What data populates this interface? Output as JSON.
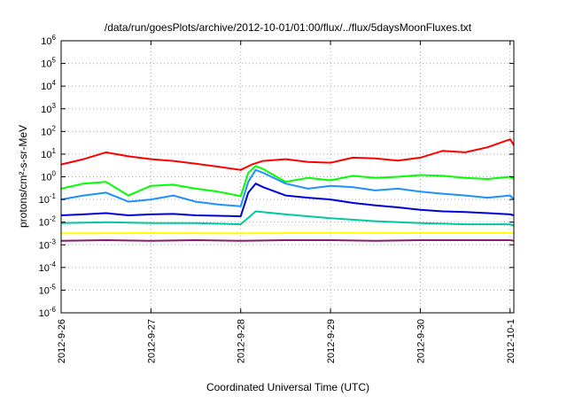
{
  "chart_data": {
    "type": "line",
    "title": "/data/run/goesPlots/archive/2012-10-01/01:00/flux/../flux/5daysMoonFluxes.txt",
    "xlabel": "Coordinated Universal Time (UTC)",
    "ylabel": "protons/cm²-s-sr-MeV",
    "x_range": [
      "2012-09-26",
      "2012-10-01T01:00"
    ],
    "xticks": [
      {
        "label": "2012-9-26",
        "value": "2012-09-26"
      },
      {
        "label": "2012-9-27",
        "value": "2012-09-27"
      },
      {
        "label": "2012-9-28",
        "value": "2012-09-28"
      },
      {
        "label": "2012-9-29",
        "value": "2012-09-29"
      },
      {
        "label": "2012-9-30",
        "value": "2012-09-30"
      },
      {
        "label": "2012-10-1",
        "value": "2012-10-01"
      }
    ],
    "y_scale": "log",
    "ylim": [
      1e-06,
      1000000.0
    ],
    "yticks": [
      {
        "base": "10",
        "exp": "-6",
        "value": 1e-06
      },
      {
        "base": "10",
        "exp": "-5",
        "value": 1e-05
      },
      {
        "base": "10",
        "exp": "-4",
        "value": 0.0001
      },
      {
        "base": "10",
        "exp": "-3",
        "value": 0.001
      },
      {
        "base": "10",
        "exp": "-2",
        "value": 0.01
      },
      {
        "base": "10",
        "exp": "-1",
        "value": 0.1
      },
      {
        "base": "10",
        "exp": "0",
        "value": 1
      },
      {
        "base": "10",
        "exp": "1",
        "value": 10
      },
      {
        "base": "10",
        "exp": "2",
        "value": 100
      },
      {
        "base": "10",
        "exp": "3",
        "value": 1000
      },
      {
        "base": "10",
        "exp": "4",
        "value": 10000
      },
      {
        "base": "10",
        "exp": "5",
        "value": 100000
      },
      {
        "base": "10",
        "exp": "6",
        "value": 1000000
      }
    ],
    "grid": true,
    "series": [
      {
        "color": "#ff0000",
        "x": [
          "2012-09-26",
          "2012-09-26T06:00",
          "2012-09-26T12:00",
          "2012-09-26T18:00",
          "2012-09-27",
          "2012-09-27T06:00",
          "2012-09-27T12:00",
          "2012-09-27T18:00",
          "2012-09-28",
          "2012-09-28T03:00",
          "2012-09-28T06:00",
          "2012-09-28T12:00",
          "2012-09-28T18:00",
          "2012-09-29",
          "2012-09-29T06:00",
          "2012-09-29T12:00",
          "2012-09-29T18:00",
          "2012-09-30",
          "2012-09-30T06:00",
          "2012-09-30T12:00",
          "2012-09-30T18:00",
          "2012-10-01",
          "2012-10-01T01:00"
        ],
        "values": [
          3.5,
          6,
          12,
          8,
          6,
          5,
          3.8,
          2.8,
          2.0,
          3.5,
          5,
          6,
          4.5,
          4.2,
          7,
          6.5,
          5.2,
          7,
          14,
          12,
          20,
          45,
          25
        ]
      },
      {
        "color": "#00ff00",
        "x": [
          "2012-09-26",
          "2012-09-26T06:00",
          "2012-09-26T12:00",
          "2012-09-26T18:00",
          "2012-09-27",
          "2012-09-27T06:00",
          "2012-09-27T12:00",
          "2012-09-27T18:00",
          "2012-09-28",
          "2012-09-28T02:00",
          "2012-09-28T04:00",
          "2012-09-28T06:00",
          "2012-09-28T12:00",
          "2012-09-28T18:00",
          "2012-09-29",
          "2012-09-29T06:00",
          "2012-09-29T12:00",
          "2012-09-29T18:00",
          "2012-09-30",
          "2012-09-30T06:00",
          "2012-09-30T12:00",
          "2012-09-30T18:00",
          "2012-10-01",
          "2012-10-01T01:00"
        ],
        "values": [
          0.3,
          0.5,
          0.6,
          0.15,
          0.4,
          0.45,
          0.3,
          0.22,
          0.14,
          1.5,
          3.0,
          2.2,
          0.6,
          0.9,
          0.7,
          1.1,
          0.9,
          1.0,
          1.2,
          1.1,
          0.9,
          0.8,
          1.0,
          0.8
        ]
      },
      {
        "color": "#1e90ff",
        "x": [
          "2012-09-26",
          "2012-09-26T06:00",
          "2012-09-26T12:00",
          "2012-09-26T18:00",
          "2012-09-27",
          "2012-09-27T06:00",
          "2012-09-27T12:00",
          "2012-09-27T18:00",
          "2012-09-28",
          "2012-09-28T02:00",
          "2012-09-28T04:00",
          "2012-09-28T06:00",
          "2012-09-28T12:00",
          "2012-09-28T18:00",
          "2012-09-29",
          "2012-09-29T06:00",
          "2012-09-29T12:00",
          "2012-09-29T18:00",
          "2012-09-30",
          "2012-09-30T06:00",
          "2012-09-30T12:00",
          "2012-09-30T18:00",
          "2012-10-01",
          "2012-10-01T01:00"
        ],
        "values": [
          0.1,
          0.15,
          0.2,
          0.08,
          0.1,
          0.15,
          0.08,
          0.06,
          0.05,
          0.6,
          2.0,
          1.5,
          0.5,
          0.3,
          0.4,
          0.35,
          0.25,
          0.3,
          0.22,
          0.18,
          0.15,
          0.12,
          0.15,
          0.1
        ]
      },
      {
        "color": "#0000dd",
        "x": [
          "2012-09-26",
          "2012-09-26T06:00",
          "2012-09-26T12:00",
          "2012-09-26T18:00",
          "2012-09-27",
          "2012-09-27T06:00",
          "2012-09-27T12:00",
          "2012-09-27T18:00",
          "2012-09-28",
          "2012-09-28T02:00",
          "2012-09-28T04:00",
          "2012-09-28T06:00",
          "2012-09-28T12:00",
          "2012-09-28T18:00",
          "2012-09-29",
          "2012-09-29T06:00",
          "2012-09-29T12:00",
          "2012-09-29T18:00",
          "2012-09-30",
          "2012-09-30T06:00",
          "2012-09-30T12:00",
          "2012-09-30T18:00",
          "2012-10-01",
          "2012-10-01T01:00"
        ],
        "values": [
          0.02,
          0.022,
          0.025,
          0.02,
          0.022,
          0.023,
          0.02,
          0.019,
          0.018,
          0.2,
          0.5,
          0.35,
          0.15,
          0.12,
          0.1,
          0.07,
          0.055,
          0.045,
          0.035,
          0.03,
          0.028,
          0.025,
          0.022,
          0.02
        ]
      },
      {
        "color": "#00c8a0",
        "x": [
          "2012-09-26",
          "2012-09-26T12:00",
          "2012-09-27",
          "2012-09-27T12:00",
          "2012-09-28",
          "2012-09-28T04:00",
          "2012-09-28T12:00",
          "2012-09-29",
          "2012-09-29T12:00",
          "2012-09-30",
          "2012-09-30T12:00",
          "2012-10-01",
          "2012-10-01T01:00"
        ],
        "values": [
          0.009,
          0.01,
          0.009,
          0.009,
          0.008,
          0.03,
          0.022,
          0.015,
          0.011,
          0.009,
          0.008,
          0.008,
          0.007
        ]
      },
      {
        "color": "#ffff00",
        "x": [
          "2012-09-26",
          "2012-09-27",
          "2012-09-28",
          "2012-09-29",
          "2012-09-30",
          "2012-10-01",
          "2012-10-01T01:00"
        ],
        "values": [
          0.0032,
          0.0033,
          0.0032,
          0.0034,
          0.0033,
          0.0034,
          0.0033
        ]
      },
      {
        "color": "#8b1a6b",
        "x": [
          "2012-09-26",
          "2012-09-26T12:00",
          "2012-09-27",
          "2012-09-27T12:00",
          "2012-09-28",
          "2012-09-28T12:00",
          "2012-09-29",
          "2012-09-29T12:00",
          "2012-09-30",
          "2012-09-30T12:00",
          "2012-10-01",
          "2012-10-01T01:00"
        ],
        "values": [
          0.0015,
          0.0016,
          0.0015,
          0.0016,
          0.0015,
          0.0016,
          0.0016,
          0.0015,
          0.0016,
          0.0016,
          0.0016,
          0.0015
        ]
      }
    ]
  }
}
